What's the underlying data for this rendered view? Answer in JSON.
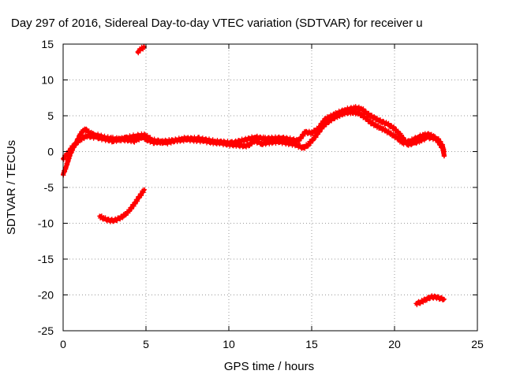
{
  "chart_data": {
    "type": "scatter",
    "title": "Day 297 of 2016, Sidereal Day-to-day VTEC variation (SDTVAR) for receiver u",
    "xlabel": "GPS time / hours",
    "ylabel": "SDTVAR / TECUs",
    "xlim": [
      0,
      25
    ],
    "ylim": [
      -25,
      15
    ],
    "x_ticks": [
      0,
      5,
      10,
      15,
      20,
      25
    ],
    "y_ticks": [
      -25,
      -20,
      -15,
      -10,
      -5,
      0,
      5,
      10,
      15
    ],
    "grid": true,
    "marker_color": "#ff0000",
    "series": [
      {
        "points": [
          [
            0,
            -3.2
          ],
          [
            0.2,
            -2.0
          ],
          [
            0.4,
            -0.5
          ],
          [
            0.6,
            0.5
          ],
          [
            0.8,
            1.3
          ],
          [
            1.0,
            2.2
          ],
          [
            1.2,
            3.0
          ],
          [
            1.4,
            3.0
          ],
          [
            1.6,
            2.6
          ],
          [
            1.8,
            2.4
          ],
          [
            2.0,
            2.3
          ],
          [
            2.3,
            2.1
          ],
          [
            2.6,
            1.9
          ],
          [
            3.0,
            1.8
          ],
          [
            3.5,
            1.7
          ],
          [
            4.0,
            1.6
          ],
          [
            4.3,
            1.5
          ],
          [
            4.5,
            1.7
          ],
          [
            4.8,
            2.1
          ],
          [
            5.0,
            1.7
          ],
          [
            5.5,
            1.3
          ],
          [
            6.0,
            1.4
          ],
          [
            6.5,
            1.5
          ],
          [
            7.0,
            1.6
          ],
          [
            7.5,
            1.7
          ],
          [
            8.0,
            1.6
          ],
          [
            8.5,
            1.5
          ],
          [
            9.0,
            1.3
          ],
          [
            9.5,
            1.2
          ],
          [
            10.0,
            1.0
          ],
          [
            10.5,
            0.9
          ],
          [
            11.0,
            0.8
          ],
          [
            11.3,
            1.0
          ],
          [
            11.5,
            1.5
          ],
          [
            11.8,
            1.3
          ],
          [
            12.0,
            1.1
          ],
          [
            12.5,
            1.3
          ],
          [
            13.0,
            1.4
          ],
          [
            13.5,
            1.2
          ],
          [
            14.0,
            1.0
          ],
          [
            14.5,
            0.5
          ],
          [
            14.8,
            1.0
          ],
          [
            15.2,
            2.0
          ],
          [
            15.5,
            3.0
          ],
          [
            15.8,
            3.8
          ],
          [
            16.2,
            4.5
          ],
          [
            16.6,
            5.0
          ],
          [
            17.0,
            5.4
          ],
          [
            17.4,
            5.5
          ],
          [
            17.8,
            5.4
          ],
          [
            18.2,
            4.8
          ],
          [
            18.6,
            4.0
          ],
          [
            19.0,
            3.5
          ],
          [
            19.4,
            3.0
          ],
          [
            19.8,
            2.5
          ],
          [
            20.2,
            1.8
          ],
          [
            20.5,
            1.2
          ],
          [
            21.0,
            1.5
          ],
          [
            21.4,
            2.0
          ],
          [
            21.8,
            2.3
          ],
          [
            22.1,
            2.4
          ],
          [
            22.4,
            2.0
          ],
          [
            22.7,
            1.2
          ],
          [
            23.0,
            0.0
          ]
        ]
      },
      {
        "points": [
          [
            0,
            -1.0
          ],
          [
            0.3,
            -0.2
          ],
          [
            0.6,
            0.8
          ],
          [
            1.0,
            1.6
          ],
          [
            1.4,
            2.2
          ],
          [
            2.0,
            2.0
          ],
          [
            3.0,
            1.5
          ],
          [
            3.8,
            1.9
          ],
          [
            4.4,
            2.2
          ],
          [
            4.9,
            2.3
          ],
          [
            5.4,
            1.6
          ],
          [
            6.2,
            1.2
          ],
          [
            7.2,
            1.8
          ],
          [
            8.2,
            1.8
          ],
          [
            9.2,
            1.4
          ],
          [
            10.2,
            1.2
          ],
          [
            11.6,
            2.0
          ],
          [
            12.2,
            1.8
          ],
          [
            13.2,
            1.9
          ],
          [
            14.2,
            1.5
          ],
          [
            14.6,
            2.7
          ],
          [
            15.0,
            2.6
          ],
          [
            15.4,
            3.2
          ],
          [
            15.8,
            4.5
          ],
          [
            16.4,
            5.2
          ],
          [
            17.0,
            5.8
          ],
          [
            17.6,
            6.1
          ],
          [
            18.0,
            6.0
          ],
          [
            18.4,
            5.2
          ],
          [
            19.0,
            4.4
          ],
          [
            19.6,
            3.8
          ],
          [
            20.0,
            3.2
          ],
          [
            20.4,
            2.2
          ],
          [
            20.8,
            1.0
          ],
          [
            21.2,
            1.2
          ],
          [
            21.6,
            1.6
          ],
          [
            22.0,
            2.0
          ],
          [
            22.6,
            1.8
          ],
          [
            22.9,
            0.8
          ],
          [
            23.0,
            -0.6
          ]
        ]
      },
      {
        "points": [
          [
            2.2,
            -9.0
          ],
          [
            2.5,
            -9.4
          ],
          [
            2.8,
            -9.6
          ],
          [
            3.1,
            -9.6
          ],
          [
            3.4,
            -9.3
          ],
          [
            3.7,
            -8.9
          ],
          [
            4.0,
            -8.2
          ],
          [
            4.3,
            -7.3
          ],
          [
            4.6,
            -6.3
          ],
          [
            4.9,
            -5.3
          ]
        ]
      },
      {
        "points": [
          [
            4.5,
            13.9
          ],
          [
            4.7,
            14.3
          ],
          [
            4.9,
            14.6
          ]
        ]
      },
      {
        "points": [
          [
            21.3,
            -21.2
          ],
          [
            21.6,
            -21.0
          ],
          [
            21.9,
            -20.6
          ],
          [
            22.2,
            -20.3
          ],
          [
            22.5,
            -20.3
          ],
          [
            22.8,
            -20.5
          ],
          [
            23.0,
            -20.6
          ]
        ]
      }
    ]
  }
}
